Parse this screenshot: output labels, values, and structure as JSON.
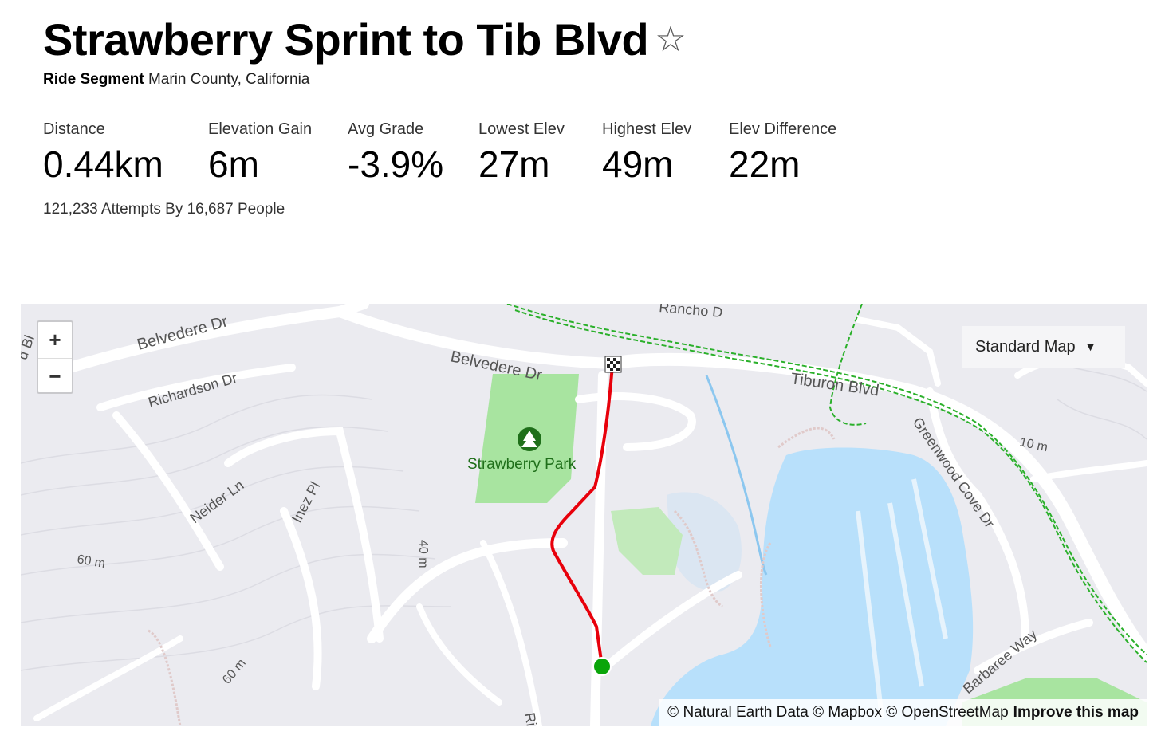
{
  "header": {
    "title": "Strawberry Sprint to Tib Blvd",
    "star_icon": "☆",
    "segment_type": "Ride Segment",
    "location": "Marin County, California"
  },
  "stats": [
    {
      "label": "Distance",
      "value": "0.44km"
    },
    {
      "label": "Elevation Gain",
      "value": "6m"
    },
    {
      "label": "Avg Grade",
      "value": "-3.9%"
    },
    {
      "label": "Lowest Elev",
      "value": "27m"
    },
    {
      "label": "Highest Elev",
      "value": "49m"
    },
    {
      "label": "Elev Difference",
      "value": "22m"
    }
  ],
  "attempts": "121,233 Attempts By 16,687 People",
  "map": {
    "zoom_in": "+",
    "zoom_out": "−",
    "map_type": "Standard Map",
    "attribution": {
      "natural_earth": "© Natural Earth Data",
      "mapbox": "© Mapbox",
      "osm": "© OpenStreetMap",
      "improve": "Improve this map"
    },
    "labels": {
      "belvedere_dr_1": "Belvedere Dr",
      "belvedere_dr_2": "Belvedere Dr",
      "richardson_dr": "Richardson Dr",
      "neider_ln": "Neider Ln",
      "inez_pl": "Inez Pl",
      "rancho": "Rancho D",
      "tiburon_blvd": "Tiburon Blvd",
      "greenwood_cove_dr": "Greenwood Cove Dr",
      "barbaree_way": "Barbaree Way",
      "strawberry_park": "Strawberry Park",
      "contour_60a": "60 m",
      "contour_60b": "60 m",
      "contour_40": "40 m",
      "contour_10": "10 m",
      "edge_bl": "d Bl",
      "edge_ri": "Ri"
    },
    "colors": {
      "route": "#e8000b",
      "water": "#b8e0fb",
      "park": "#a8e4a0",
      "bike_path": "#2bb02b",
      "start": "#0aa50a"
    }
  }
}
